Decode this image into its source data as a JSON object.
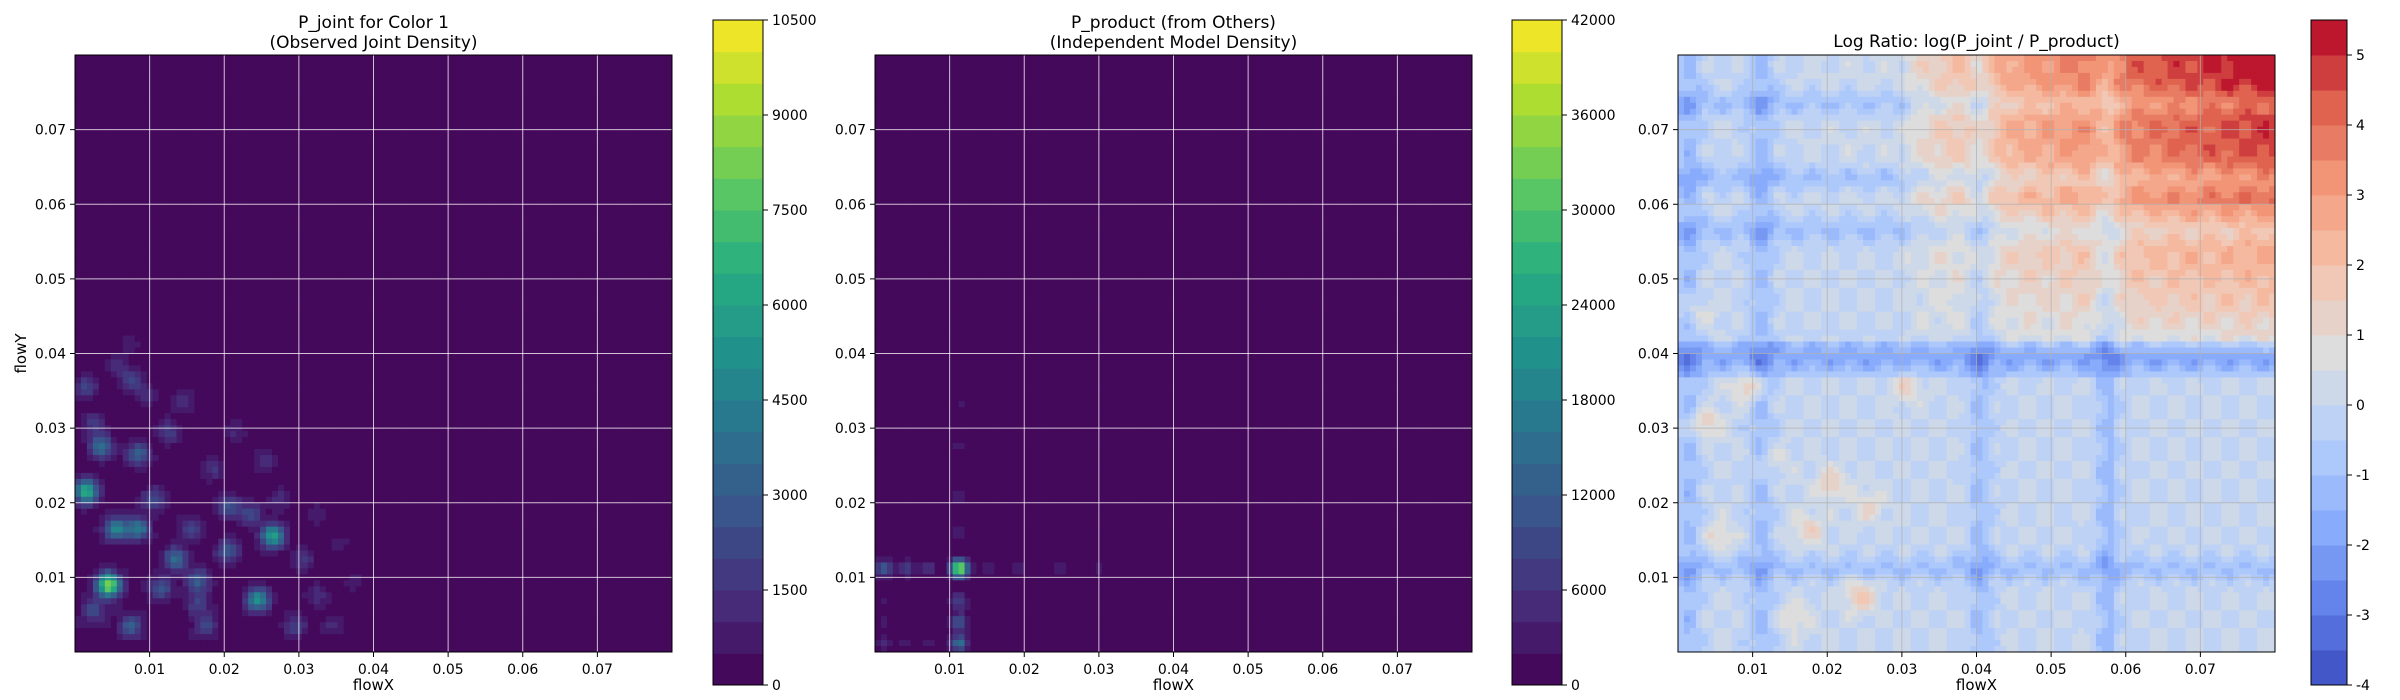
{
  "chart_data": [
    {
      "type": "heatmap",
      "title_lines": [
        "P_joint for Color 1",
        "(Observed Joint Density)"
      ],
      "xlabel": "flowX",
      "ylabel": "flowY",
      "xlim": [
        0.0,
        0.08
      ],
      "ylim": [
        0.0,
        0.08
      ],
      "xticks": [
        "0.01",
        "0.02",
        "0.03",
        "0.04",
        "0.05",
        "0.06",
        "0.07"
      ],
      "yticks": [
        "0.01",
        "0.02",
        "0.03",
        "0.04",
        "0.05",
        "0.06",
        "0.07"
      ],
      "grid": true,
      "colormap": "viridis",
      "colorbar": {
        "min": 0,
        "max": 10500,
        "ticks": [
          "0",
          "1500",
          "3000",
          "4500",
          "6000",
          "7500",
          "9000",
          "10500"
        ],
        "levels": 21
      },
      "hotspots": [
        {
          "x": 0.0045,
          "y": 0.009,
          "value": 8500
        },
        {
          "x": 0.0015,
          "y": 0.0215,
          "value": 6500
        },
        {
          "x": 0.0265,
          "y": 0.0155,
          "value": 6000
        },
        {
          "x": 0.0245,
          "y": 0.007,
          "value": 5200
        },
        {
          "x": 0.0055,
          "y": 0.0165,
          "value": 4500
        },
        {
          "x": 0.0085,
          "y": 0.0165,
          "value": 4000
        },
        {
          "x": 0.0035,
          "y": 0.0275,
          "value": 3800
        },
        {
          "x": 0.0135,
          "y": 0.0125,
          "value": 3500
        },
        {
          "x": 0.0165,
          "y": 0.0095,
          "value": 3000
        },
        {
          "x": 0.0085,
          "y": 0.0265,
          "value": 3200
        },
        {
          "x": 0.0205,
          "y": 0.0135,
          "value": 2800
        },
        {
          "x": 0.0075,
          "y": 0.0035,
          "value": 2800
        },
        {
          "x": 0.0205,
          "y": 0.0195,
          "value": 2600
        },
        {
          "x": 0.0115,
          "y": 0.0085,
          "value": 2600
        },
        {
          "x": 0.0105,
          "y": 0.0205,
          "value": 2300
        },
        {
          "x": 0.0235,
          "y": 0.0185,
          "value": 2200
        },
        {
          "x": 0.0015,
          "y": 0.0355,
          "value": 2100
        },
        {
          "x": 0.0075,
          "y": 0.0365,
          "value": 2000
        },
        {
          "x": 0.0155,
          "y": 0.0165,
          "value": 2000
        },
        {
          "x": 0.0295,
          "y": 0.0035,
          "value": 2000
        },
        {
          "x": 0.0175,
          "y": 0.0035,
          "value": 2000
        },
        {
          "x": 0.0125,
          "y": 0.0295,
          "value": 1900
        },
        {
          "x": 0.0025,
          "y": 0.0055,
          "value": 2200
        },
        {
          "x": 0.0305,
          "y": 0.0125,
          "value": 1600
        },
        {
          "x": 0.0145,
          "y": 0.0335,
          "value": 1500
        },
        {
          "x": 0.0255,
          "y": 0.0255,
          "value": 1500
        },
        {
          "x": 0.0185,
          "y": 0.0245,
          "value": 1400
        },
        {
          "x": 0.0325,
          "y": 0.0075,
          "value": 1300
        },
        {
          "x": 0.0025,
          "y": 0.0305,
          "value": 1600
        },
        {
          "x": 0.0275,
          "y": 0.0205,
          "value": 1200
        },
        {
          "x": 0.0345,
          "y": 0.0035,
          "value": 1100
        },
        {
          "x": 0.0095,
          "y": 0.0345,
          "value": 1200
        },
        {
          "x": 0.0055,
          "y": 0.0385,
          "value": 1100
        },
        {
          "x": 0.0215,
          "y": 0.0295,
          "value": 1000
        },
        {
          "x": 0.0375,
          "y": 0.0095,
          "value": 800
        },
        {
          "x": 0.0165,
          "y": 0.0065,
          "value": 1800
        },
        {
          "x": 0.0325,
          "y": 0.0185,
          "value": 900
        },
        {
          "x": 0.0075,
          "y": 0.0415,
          "value": 700
        },
        {
          "x": 0.0355,
          "y": 0.0145,
          "value": 700
        }
      ]
    },
    {
      "type": "heatmap",
      "title_lines": [
        "P_product (from Others)",
        "(Independent Model Density)"
      ],
      "xlabel": "flowX",
      "ylabel": "",
      "xlim": [
        0.0,
        0.08
      ],
      "ylim": [
        0.0,
        0.08
      ],
      "xticks": [
        "0.01",
        "0.02",
        "0.03",
        "0.04",
        "0.05",
        "0.06",
        "0.07"
      ],
      "yticks": [
        "0.01",
        "0.02",
        "0.03",
        "0.04",
        "0.05",
        "0.06",
        "0.07"
      ],
      "grid": true,
      "colormap": "viridis",
      "colorbar": {
        "min": 0,
        "max": 42000,
        "ticks": [
          "0",
          "6000",
          "12000",
          "18000",
          "24000",
          "30000",
          "36000",
          "42000"
        ],
        "levels": 21
      },
      "marginal_x": [
        {
          "x": 0.0012,
          "weight": 0.3
        },
        {
          "x": 0.0042,
          "weight": 0.2
        },
        {
          "x": 0.0072,
          "weight": 0.15
        },
        {
          "x": 0.0113,
          "weight": 1.0
        },
        {
          "x": 0.015,
          "weight": 0.12
        },
        {
          "x": 0.019,
          "weight": 0.1
        },
        {
          "x": 0.0245,
          "weight": 0.09
        },
        {
          "x": 0.03,
          "weight": 0.07
        },
        {
          "x": 0.0352,
          "weight": 0.06
        },
        {
          "x": 0.0395,
          "weight": 0.05
        }
      ],
      "marginal_y": [
        {
          "y": 0.0012,
          "weight": 0.4
        },
        {
          "y": 0.004,
          "weight": 0.3
        },
        {
          "y": 0.0068,
          "weight": 0.22
        },
        {
          "y": 0.0112,
          "weight": 1.0
        },
        {
          "y": 0.016,
          "weight": 0.12
        },
        {
          "y": 0.021,
          "weight": 0.09
        },
        {
          "y": 0.0275,
          "weight": 0.07
        },
        {
          "y": 0.033,
          "weight": 0.06
        },
        {
          "y": 0.0395,
          "weight": 0.05
        }
      ],
      "peak": {
        "x": 0.0113,
        "y": 0.0112,
        "value": 38000
      }
    },
    {
      "type": "heatmap",
      "title_lines": [
        "Log Ratio: log(P_joint / P_product)"
      ],
      "xlabel": "flowX",
      "ylabel": "",
      "xlim": [
        0.0,
        0.08
      ],
      "ylim": [
        0.0,
        0.08
      ],
      "xticks": [
        "0.01",
        "0.02",
        "0.03",
        "0.04",
        "0.05",
        "0.06",
        "0.07"
      ],
      "yticks": [
        "0.01",
        "0.02",
        "0.03",
        "0.04",
        "0.05",
        "0.06",
        "0.07"
      ],
      "grid": true,
      "colormap": "coolwarm",
      "colorbar": {
        "min": -4,
        "max": 5.5,
        "ticks": [
          "-4",
          "-3",
          "-2",
          "-1",
          "0",
          "1",
          "2",
          "3",
          "4",
          "5"
        ],
        "tick_values": [
          -4,
          -3,
          -2,
          -1,
          0,
          1,
          2,
          3,
          4,
          5
        ],
        "levels": 19
      },
      "blue_bands_x": [
        0.0015,
        0.0112,
        0.0405,
        0.0575
      ],
      "blue_bands_y": [
        0.0112,
        0.0395,
        0.0565,
        0.0635,
        0.0735
      ],
      "red_region": {
        "x_from": 0.03,
        "y_from": 0.04,
        "peak": 4.8
      },
      "red_blobs": [
        {
          "x": 0.0035,
          "y": 0.0305,
          "value": 1.6
        },
        {
          "x": 0.0095,
          "y": 0.0355,
          "value": 1.7
        },
        {
          "x": 0.0205,
          "y": 0.0225,
          "value": 1.5
        },
        {
          "x": 0.0245,
          "y": 0.0075,
          "value": 1.8
        },
        {
          "x": 0.0175,
          "y": 0.0165,
          "value": 1.3
        },
        {
          "x": 0.0305,
          "y": 0.0355,
          "value": 1.2
        },
        {
          "x": 0.0055,
          "y": 0.0155,
          "value": 1.1
        },
        {
          "x": 0.0255,
          "y": 0.0195,
          "value": 1.2
        },
        {
          "x": 0.0125,
          "y": 0.0255,
          "value": 1.0
        },
        {
          "x": 0.0155,
          "y": 0.0045,
          "value": 1.0
        },
        {
          "x": 0.0025,
          "y": 0.0455,
          "value": 1.1
        }
      ]
    }
  ]
}
